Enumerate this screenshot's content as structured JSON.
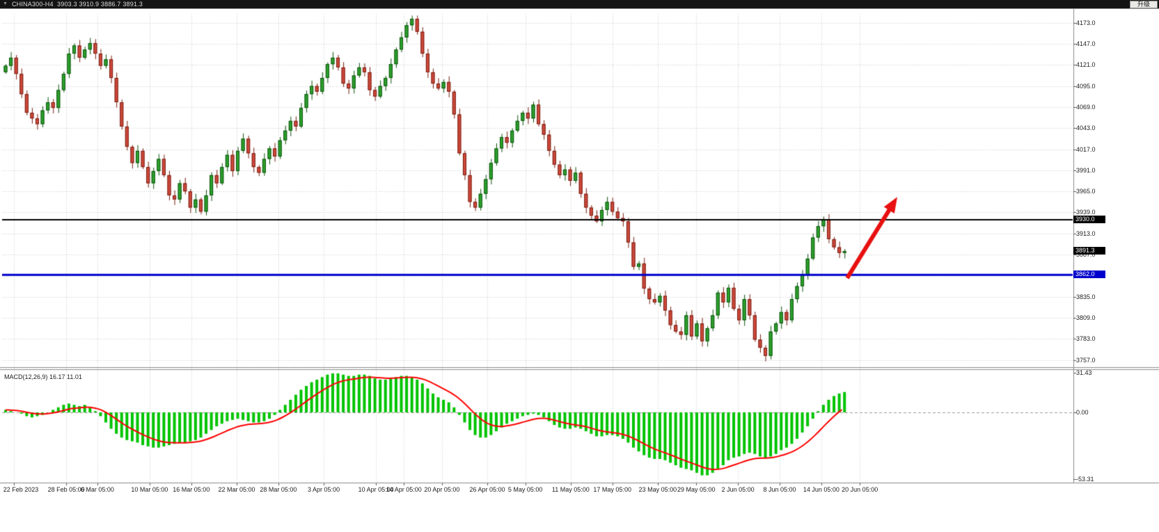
{
  "titlebar": {
    "caret": "▼",
    "symbol_line": "CHINA300-H4  3903.3 3910.9 3886.7 3891.3",
    "upgrade_label": "升级"
  },
  "price_axis": {
    "labels": [
      4173,
      4147,
      4121,
      4095,
      4069,
      4043,
      4017,
      3991,
      3965,
      3939,
      3913,
      3887,
      3861,
      3835,
      3809,
      3783,
      3757
    ],
    "tags": {
      "resistance": {
        "text": "3930.0",
        "color": "#000000"
      },
      "last": {
        "text": "3891.3",
        "color": "#000000"
      },
      "support": {
        "text": "3862.0",
        "color": "#0000cc"
      }
    }
  },
  "macd_panel": {
    "label": "MACD(12,26,9) 16.17 11.01",
    "axis": [
      {
        "text": "31.43",
        "value": 31.43
      },
      {
        "text": "0.00",
        "value": 0
      },
      {
        "text": "-53.31",
        "value": -53.31
      }
    ]
  },
  "chart_data": {
    "type": "candlestick",
    "title": "CHINA300-H4",
    "symbol": "CHINA300",
    "timeframe": "H4",
    "last_ohlc": {
      "open": 3903.3,
      "high": 3910.9,
      "low": 3886.7,
      "close": 3891.3
    },
    "y_range": [
      3757,
      4173
    ],
    "first_open": 4112,
    "closes": [
      4120,
      4130,
      4110,
      4085,
      4062,
      4055,
      4048,
      4065,
      4075,
      4068,
      4090,
      4110,
      4135,
      4145,
      4130,
      4140,
      4148,
      4135,
      4120,
      4128,
      4105,
      4075,
      4045,
      4020,
      4000,
      4015,
      3995,
      3975,
      3990,
      4005,
      3985,
      3960,
      3955,
      3975,
      3965,
      3945,
      3955,
      3940,
      3960,
      3985,
      3975,
      3995,
      4010,
      3990,
      4015,
      4030,
      4012,
      3995,
      3988,
      4005,
      4018,
      4008,
      4028,
      4040,
      4052,
      4045,
      4068,
      4085,
      4095,
      4088,
      4105,
      4122,
      4130,
      4118,
      4098,
      4092,
      4108,
      4118,
      4112,
      4090,
      4082,
      4095,
      4105,
      4122,
      4140,
      4155,
      4170,
      4178,
      4162,
      4135,
      4112,
      4098,
      4092,
      4100,
      4088,
      4060,
      4012,
      3985,
      3952,
      3945,
      3962,
      3980,
      4000,
      4018,
      4032,
      4025,
      4040,
      4052,
      4062,
      4055,
      4072,
      4048,
      4035,
      4015,
      3998,
      3985,
      3992,
      3978,
      3988,
      3962,
      3945,
      3935,
      3928,
      3942,
      3952,
      3940,
      3932,
      3928,
      3902,
      3872,
      3876,
      3845,
      3832,
      3828,
      3836,
      3818,
      3800,
      3792,
      3788,
      3812,
      3786,
      3802,
      3780,
      3796,
      3812,
      3840,
      3828,
      3846,
      3820,
      3806,
      3832,
      3812,
      3782,
      3772,
      3762,
      3792,
      3802,
      3816,
      3806,
      3832,
      3848,
      3862,
      3882,
      3908,
      3922,
      3930,
      3906,
      3896,
      3889,
      3891.3
    ],
    "levels": {
      "resistance_black": 3930.0,
      "support_blue": 3862.0,
      "last_price": 3891.3
    },
    "time_ticks": [
      {
        "label": "22 Feb 2023",
        "i": 1.6
      },
      {
        "label": "28 Feb 05:00",
        "i": 11.5
      },
      {
        "label": "6 Mar 05:00",
        "i": 17.4
      },
      {
        "label": "10 Mar 05:00",
        "i": 27.3
      },
      {
        "label": "16 Mar 05:00",
        "i": 35.2
      },
      {
        "label": "22 Mar 05:00",
        "i": 43.8
      },
      {
        "label": "28 Mar 05:00",
        "i": 51.7
      },
      {
        "label": "3 Apr 05:00",
        "i": 60.3
      },
      {
        "label": "10 Apr 05:00",
        "i": 70.2
      },
      {
        "label": "14 Apr 05:00",
        "i": 75.5
      },
      {
        "label": "20 Apr 05:00",
        "i": 82.7
      },
      {
        "label": "26 Apr 05:00",
        "i": 91.3
      },
      {
        "label": "5 May 05:00",
        "i": 98.5
      },
      {
        "label": "11 May 05:00",
        "i": 107.1
      },
      {
        "label": "17 May 05:00",
        "i": 115.0
      },
      {
        "label": "23 May 05:00",
        "i": 123.6
      },
      {
        "label": "29 May 05:00",
        "i": 130.9
      },
      {
        "label": "2 Jun 05:00",
        "i": 138.8
      },
      {
        "label": "8 Jun 05:00",
        "i": 146.7
      },
      {
        "label": "14 Jun 05:00",
        "i": 154.6
      },
      {
        "label": "20 Jun 05:00",
        "i": 161.9
      }
    ],
    "macd": {
      "type": "histogram_with_signal",
      "label": "MACD(12,26,9)",
      "main_value": 16.17,
      "signal_value": 11.01,
      "y_range": [
        -53.31,
        31.43
      ],
      "histogram": [
        2,
        1,
        0,
        -1,
        -3,
        -4,
        -3,
        -2,
        0,
        2,
        4,
        6,
        7,
        6,
        5,
        6,
        4,
        1,
        -3,
        -8,
        -13,
        -17,
        -20,
        -22,
        -23,
        -24,
        -26,
        -27,
        -28,
        -28,
        -27,
        -26,
        -25,
        -24,
        -24,
        -23,
        -22,
        -20,
        -17,
        -14,
        -11,
        -9,
        -7,
        -6,
        -5,
        -6,
        -7,
        -8,
        -8,
        -7,
        -5,
        -2,
        2,
        6,
        10,
        14,
        18,
        21,
        24,
        26,
        28,
        30,
        31,
        31,
        30,
        29,
        29,
        30,
        30,
        29,
        27,
        26,
        26,
        27,
        28,
        29,
        29,
        28,
        26,
        23,
        19,
        15,
        12,
        10,
        8,
        4,
        -2,
        -8,
        -14,
        -18,
        -20,
        -20,
        -18,
        -15,
        -12,
        -9,
        -7,
        -5,
        -3,
        -2,
        -1,
        -2,
        -4,
        -7,
        -10,
        -12,
        -13,
        -13,
        -12,
        -13,
        -15,
        -17,
        -19,
        -19,
        -18,
        -18,
        -19,
        -21,
        -24,
        -28,
        -31,
        -34,
        -36,
        -37,
        -37,
        -38,
        -40,
        -42,
        -44,
        -45,
        -46,
        -48,
        -50,
        -50,
        -48,
        -45,
        -42,
        -38,
        -36,
        -35,
        -33,
        -32,
        -33,
        -35,
        -36,
        -35,
        -33,
        -30,
        -28,
        -25,
        -21,
        -16,
        -11,
        -5,
        1,
        6,
        10,
        13,
        15,
        16.17
      ]
    },
    "annotations": [
      {
        "type": "arrow",
        "direction": "up-right",
        "from_i": 159.5,
        "from_price": 3858,
        "to_i": 169,
        "to_price": 3958
      }
    ],
    "colors": {
      "bull_fill": "#2da32d",
      "bull_border": "#0b4f0b",
      "bear_fill": "#cf4a3c",
      "bear_border": "#771c10",
      "macd_histogram": "#00c400",
      "macd_signal": "#ff0000",
      "grid": "#c9c9c9",
      "hline_black": "#000000",
      "hline_blue": "#0000cc",
      "arrow": "#e81010",
      "axis_text": "#1c1c1c"
    }
  }
}
